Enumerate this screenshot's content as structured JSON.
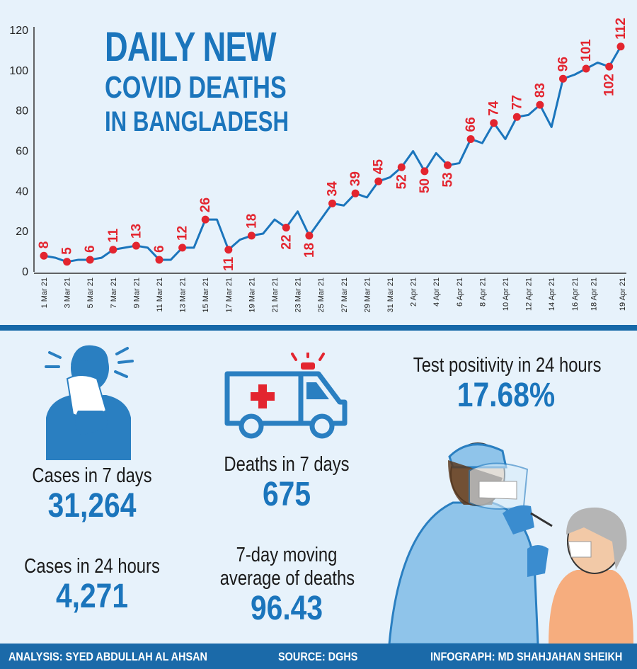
{
  "title": {
    "line1": "DAILY NEW",
    "line2": "COVID DEATHS",
    "line3": "IN BANGLADESH"
  },
  "chart_data": {
    "type": "line",
    "ylim": [
      0,
      120
    ],
    "yticks": [
      0,
      20,
      40,
      60,
      80,
      100,
      120
    ],
    "grid": false,
    "x_tick_labels": [
      "1 Mar 21",
      "3 Mar 21",
      "5 Mar 21",
      "7 Mar 21",
      "9 Mar 21",
      "11 Mar 21",
      "13 Mar 21",
      "15 Mar 21",
      "17 Mar 21",
      "19 Mar 21",
      "21 Mar 21",
      "23 Mar 21",
      "25 Mar 21",
      "27 Mar 21",
      "29 Mar 21",
      "31 Mar 21",
      "2 Apr 21",
      "4 Apr 21",
      "6 Apr 21",
      "8 Apr 21",
      "10 Apr 21",
      "12 Apr 21",
      "14 Apr 21",
      "16 Apr 21",
      "18 Apr 21",
      "19 Apr 21"
    ],
    "series": [
      {
        "values": [
          8,
          7,
          5,
          6,
          6,
          7,
          11,
          12,
          13,
          12,
          6,
          6,
          12,
          12,
          26,
          26,
          11,
          16,
          18,
          19,
          26,
          22,
          30,
          18,
          26,
          34,
          33,
          39,
          37,
          45,
          47,
          52,
          60,
          50,
          59,
          53,
          54,
          66,
          64,
          74,
          66,
          77,
          78,
          83,
          72,
          96,
          98,
          101,
          104,
          102,
          112
        ]
      }
    ],
    "labeled_points": [
      {
        "index": 0,
        "label": "8"
      },
      {
        "index": 2,
        "label": "5"
      },
      {
        "index": 4,
        "label": "6"
      },
      {
        "index": 6,
        "label": "11"
      },
      {
        "index": 8,
        "label": "13"
      },
      {
        "index": 10,
        "label": "6"
      },
      {
        "index": 12,
        "label": "12"
      },
      {
        "index": 14,
        "label": "26"
      },
      {
        "index": 16,
        "label": "11"
      },
      {
        "index": 18,
        "label": "18"
      },
      {
        "index": 21,
        "label": "22"
      },
      {
        "index": 23,
        "label": "18"
      },
      {
        "index": 25,
        "label": "34"
      },
      {
        "index": 27,
        "label": "39"
      },
      {
        "index": 29,
        "label": "45"
      },
      {
        "index": 31,
        "label": "52"
      },
      {
        "index": 33,
        "label": "50"
      },
      {
        "index": 35,
        "label": "53"
      },
      {
        "index": 37,
        "label": "66"
      },
      {
        "index": 39,
        "label": "74"
      },
      {
        "index": 41,
        "label": "77"
      },
      {
        "index": 43,
        "label": "83"
      },
      {
        "index": 45,
        "label": "96"
      },
      {
        "index": 47,
        "label": "101"
      },
      {
        "index": 49,
        "label": "102"
      },
      {
        "index": 50,
        "label": "112"
      }
    ],
    "colors": {
      "line": "#1b75bc",
      "marker": "#e3252f",
      "label": "#e3252f"
    }
  },
  "stats": {
    "cases7": {
      "label": "Cases in 7 days",
      "value": "31,264"
    },
    "cases24": {
      "label": "Cases in 24 hours",
      "value": "4,271"
    },
    "deaths7": {
      "label": "Deaths in 7 days",
      "value": "675"
    },
    "movingavg": {
      "label_line1": "7-day moving",
      "label_line2": "average of deaths",
      "value": "96.43"
    },
    "positivity": {
      "label": "Test positivity in 24 hours",
      "value": "17.68%"
    }
  },
  "footer": {
    "analysis": "ANALYSIS: SYED ABDULLAH AL AHSAN",
    "source": "SOURCE: DGHS",
    "infograph": "INFOGRAPH: MD SHAHJAHAN SHEIKH"
  },
  "icons": [
    "sneezing-person-icon",
    "ambulance-icon",
    "health-worker-swab-test-icon"
  ]
}
